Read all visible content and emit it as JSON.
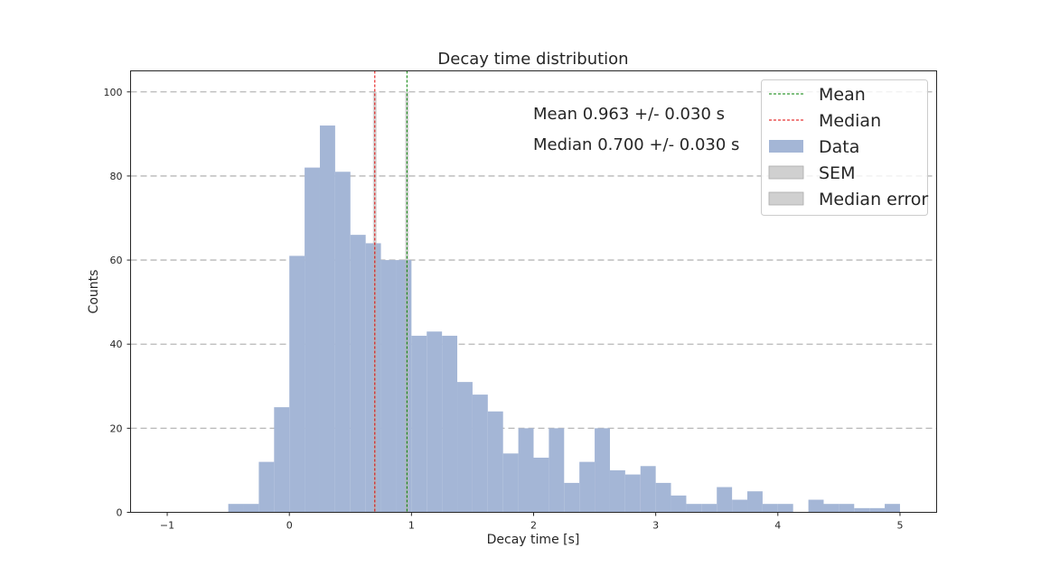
{
  "chart_data": {
    "type": "bar",
    "title": "Decay time distribution",
    "xlabel": "Decay time [s]",
    "ylabel": "Counts",
    "xlim": [
      -1.3,
      5.3
    ],
    "ylim": [
      0,
      105
    ],
    "xticks": [
      -1,
      0,
      1,
      2,
      3,
      4,
      5
    ],
    "xtick_labels": [
      "−1",
      "0",
      "1",
      "2",
      "3",
      "4",
      "5"
    ],
    "yticks": [
      0,
      20,
      40,
      60,
      80,
      100
    ],
    "ytick_labels": [
      "0",
      "20",
      "40",
      "60",
      "80",
      "100"
    ],
    "grid": "horizontal dashed",
    "legend_position": "top-right",
    "bins": {
      "start": -0.5,
      "width": 0.125,
      "counts": [
        2,
        2,
        12,
        25,
        61,
        82,
        92,
        81,
        66,
        64,
        60,
        60,
        42,
        43,
        42,
        31,
        28,
        24,
        14,
        20,
        13,
        20,
        7,
        12,
        20,
        10,
        9,
        11,
        7,
        4,
        2,
        2,
        6,
        3,
        5,
        2,
        2,
        0,
        3,
        2,
        2,
        1,
        1,
        2
      ]
    },
    "series": [
      {
        "name": "Data",
        "color": "#a4b6d6"
      }
    ],
    "mean": {
      "value": 0.963,
      "error": 0.03,
      "color": "#008000"
    },
    "median": {
      "value": 0.7,
      "error": 0.03,
      "color": "#e00000"
    },
    "annotations": [
      "Mean 0.963 +/- 0.030 s",
      "Median 0.700 +/- 0.030 s"
    ],
    "legend": [
      "Mean",
      "Median",
      "Data",
      "SEM",
      "Median error"
    ]
  }
}
